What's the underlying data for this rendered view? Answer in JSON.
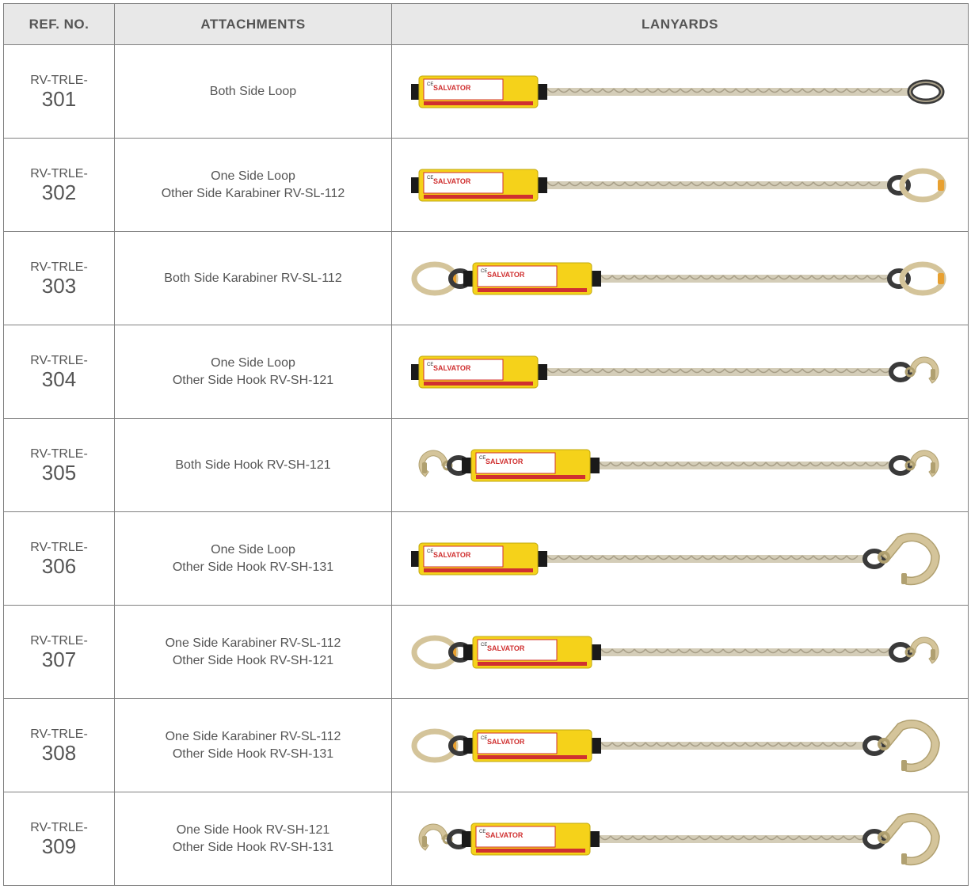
{
  "columns": {
    "ref": "REF. NO.",
    "attachments": "ATTACHMENTS",
    "lanyards": "LANYARDS"
  },
  "ref_prefix": "RV-TRLE-",
  "colors": {
    "header_bg": "#e8e8e8",
    "border": "#808080",
    "text": "#555555",
    "absorber_body": "#f5d21a",
    "absorber_label_bg": "#ffffff",
    "absorber_label_border": "#d03030",
    "absorber_strip": "#d03030",
    "rope": "#d4cdb8",
    "rope_dark": "#a89f88",
    "black_webbing": "#1a1a1a",
    "karabiner": "#d4c49a",
    "karabiner_lock": "#e8a030",
    "hook_small": "#d4c49a",
    "hook_large": "#d4c49a",
    "loop": "#3a3a3a"
  },
  "rows": [
    {
      "num": "301",
      "att": [
        "Both Side Loop"
      ],
      "left": "absorber_loop",
      "right": "loop"
    },
    {
      "num": "302",
      "att": [
        "One Side Loop",
        "Other Side Karabiner RV-SL-112"
      ],
      "left": "absorber_loop",
      "right": "karabiner"
    },
    {
      "num": "303",
      "att": [
        "Both Side Karabiner RV-SL-112"
      ],
      "left": "karabiner_absorber",
      "right": "karabiner"
    },
    {
      "num": "304",
      "att": [
        "One Side Loop",
        "Other Side Hook RV-SH-121"
      ],
      "left": "absorber_loop",
      "right": "hook_small"
    },
    {
      "num": "305",
      "att": [
        "Both Side Hook RV-SH-121"
      ],
      "left": "hook_small_absorber",
      "right": "hook_small"
    },
    {
      "num": "306",
      "att": [
        "One Side Loop",
        "Other Side Hook RV-SH-131"
      ],
      "left": "absorber_loop",
      "right": "hook_large"
    },
    {
      "num": "307",
      "att": [
        "One Side Karabiner RV-SL-112",
        "Other Side Hook RV-SH-121"
      ],
      "left": "karabiner_absorber",
      "right": "hook_small"
    },
    {
      "num": "308",
      "att": [
        "One Side Karabiner RV-SL-112",
        "Other Side Hook RV-SH-131"
      ],
      "left": "karabiner_absorber",
      "right": "hook_large"
    },
    {
      "num": "309",
      "att": [
        "One Side Hook RV-SH-121",
        "Other Side Hook RV-SH-131"
      ],
      "left": "hook_small_absorber",
      "right": "hook_large"
    }
  ]
}
